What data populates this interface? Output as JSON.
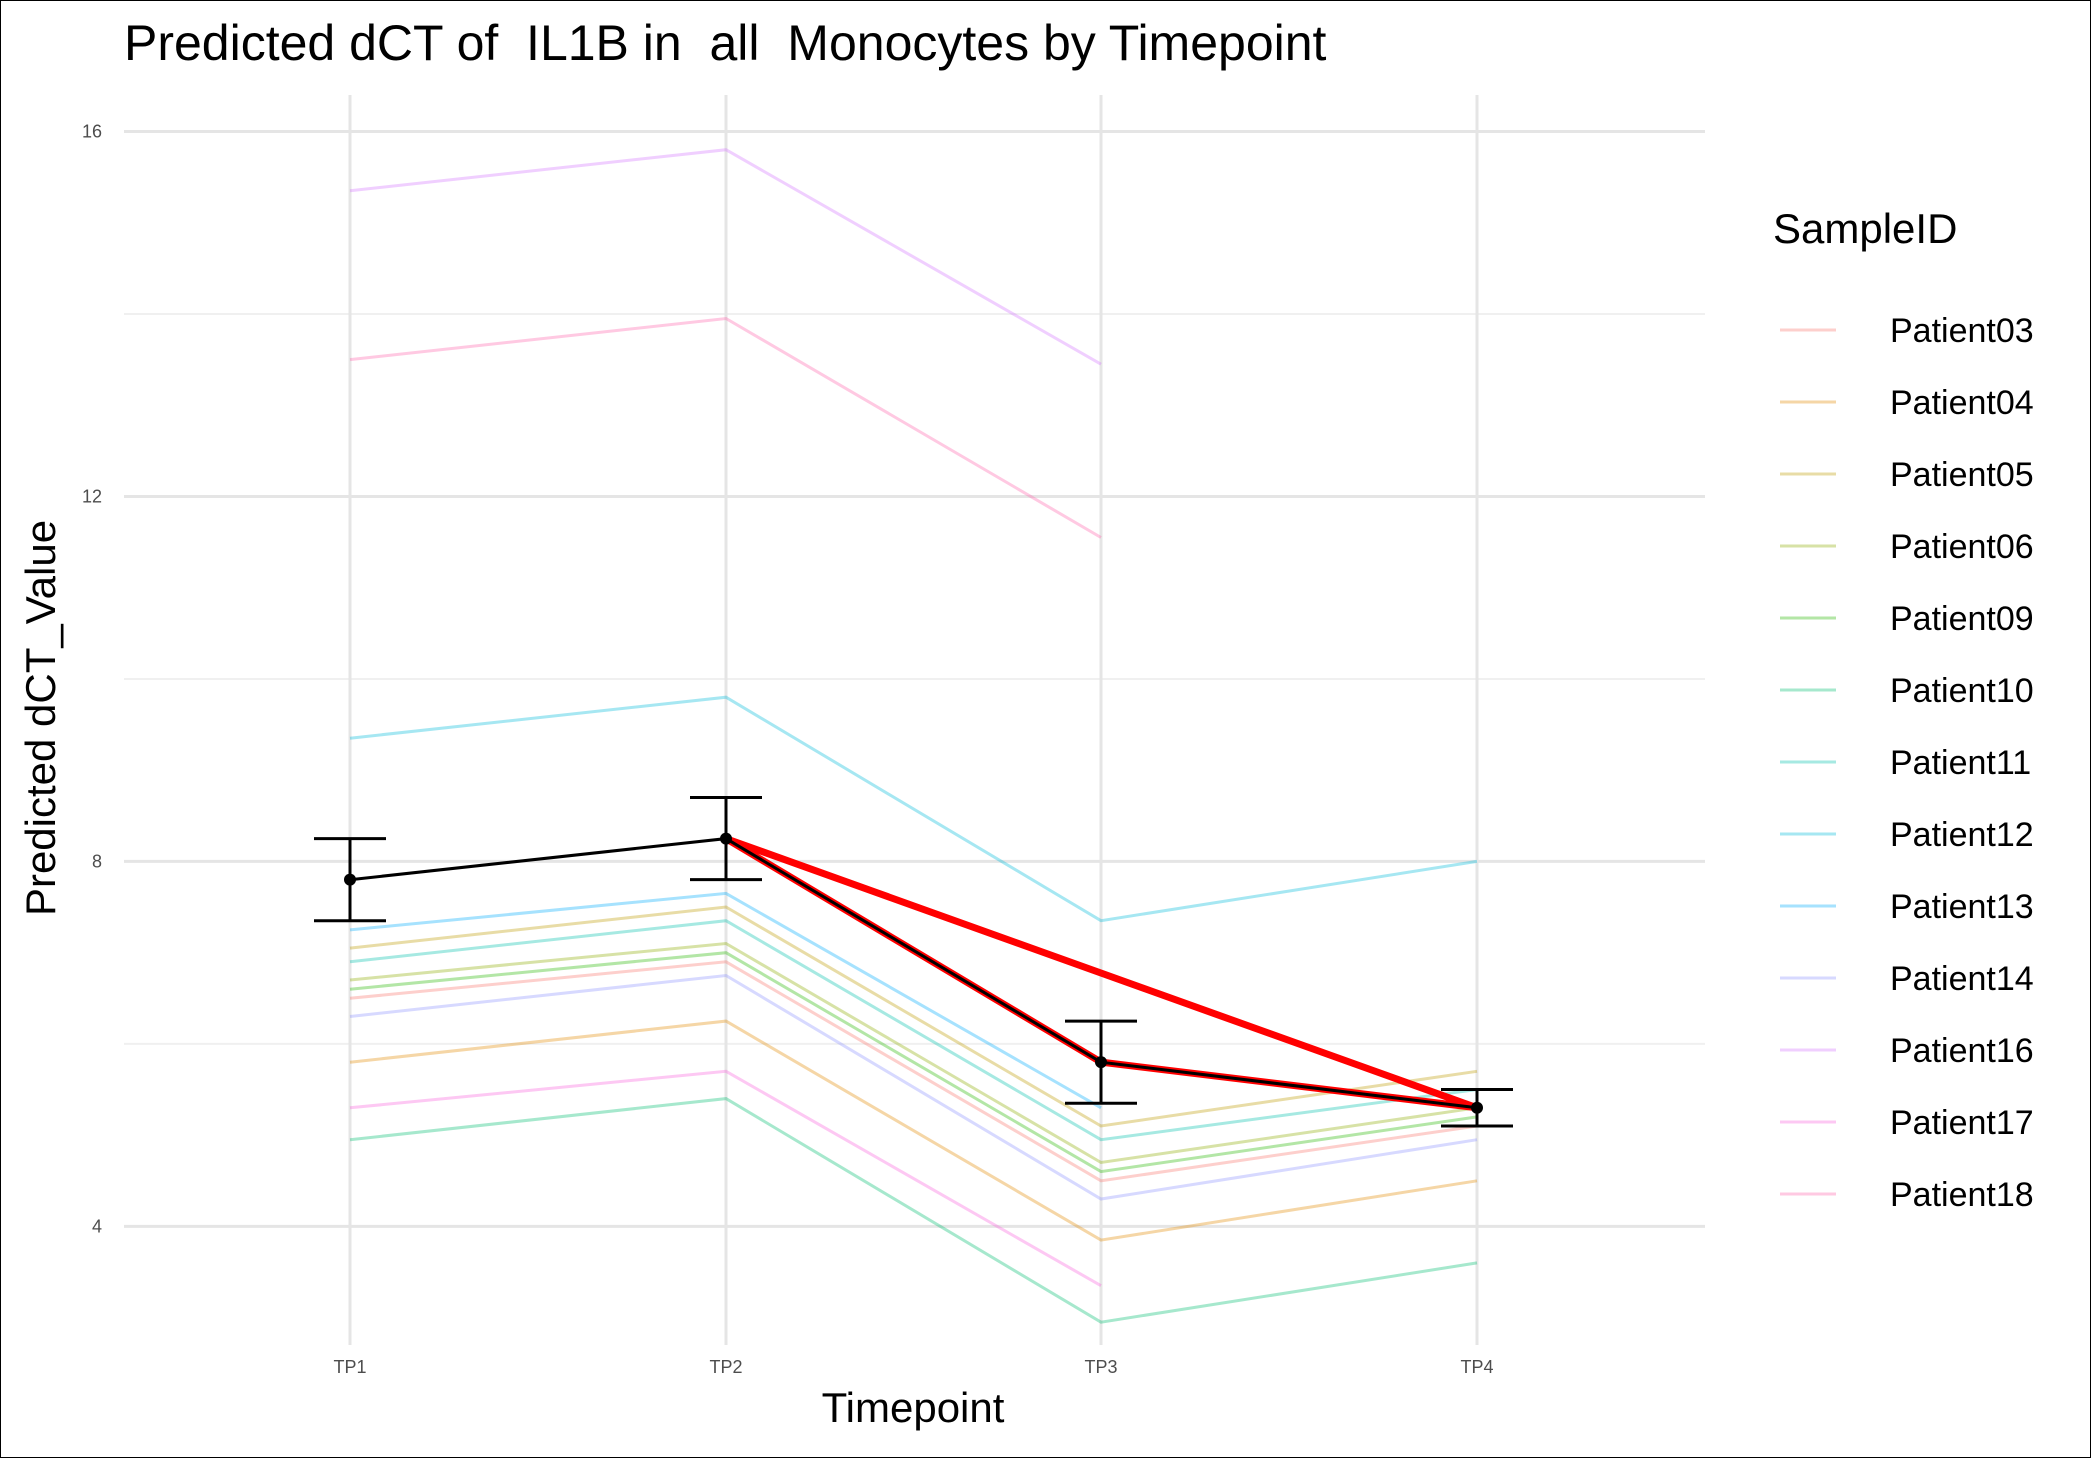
{
  "chart_data": {
    "type": "line",
    "title": "Predicted dCT of  IL1B in  all  Monocytes by Timepoint",
    "xlabel": "Timepoint",
    "ylabel": "Predicted dCT_Value",
    "categories": [
      "TP1",
      "TP2",
      "TP3",
      "TP4"
    ],
    "ylim": [
      2.7,
      16.4
    ],
    "yticks": [
      4,
      8,
      12,
      16
    ],
    "grid": true,
    "legend": {
      "title": "SampleID",
      "position": "right"
    },
    "series": [
      {
        "name": "Patient03",
        "color": "#F8766D",
        "values": [
          6.5,
          6.9,
          4.5,
          5.1
        ]
      },
      {
        "name": "Patient04",
        "color": "#E18A00",
        "values": [
          5.8,
          6.25,
          3.85,
          4.5
        ]
      },
      {
        "name": "Patient05",
        "color": "#BE9C00",
        "values": [
          7.05,
          7.5,
          5.1,
          5.7
        ]
      },
      {
        "name": "Patient06",
        "color": "#8CAB00",
        "values": [
          6.7,
          7.1,
          4.7,
          5.3
        ]
      },
      {
        "name": "Patient09",
        "color": "#24B700",
        "values": [
          6.6,
          7.0,
          4.6,
          5.2
        ]
      },
      {
        "name": "Patient10",
        "color": "#00BE70",
        "values": [
          4.95,
          5.4,
          2.95,
          3.6
        ]
      },
      {
        "name": "Patient11",
        "color": "#00C1AB",
        "values": [
          6.9,
          7.35,
          4.95,
          5.5
        ]
      },
      {
        "name": "Patient12",
        "color": "#00BBDA",
        "values": [
          9.35,
          9.8,
          7.35,
          8.0
        ]
      },
      {
        "name": "Patient13",
        "color": "#00ACFC",
        "values": [
          7.25,
          7.65,
          5.3,
          null
        ]
      },
      {
        "name": "Patient14",
        "color": "#8B93FF",
        "values": [
          6.3,
          6.75,
          4.3,
          4.95
        ]
      },
      {
        "name": "Patient16",
        "color": "#D575FE",
        "values": [
          15.35,
          15.8,
          13.45,
          null
        ]
      },
      {
        "name": "Patient17",
        "color": "#F962DD",
        "values": [
          5.3,
          5.7,
          3.35,
          null
        ]
      },
      {
        "name": "Patient18",
        "color": "#FF65AC",
        "values": [
          13.5,
          13.95,
          11.55,
          null
        ]
      }
    ],
    "mean": {
      "values": [
        7.8,
        8.25,
        5.8,
        5.3
      ],
      "lower": [
        7.35,
        7.8,
        5.35,
        5.1
      ],
      "upper": [
        8.25,
        8.7,
        6.25,
        5.5
      ],
      "color": "#000000"
    },
    "highlight": {
      "color": "#FF0000",
      "segments": [
        [
          1,
          2
        ],
        [
          1,
          3
        ],
        [
          2,
          3
        ]
      ]
    }
  }
}
